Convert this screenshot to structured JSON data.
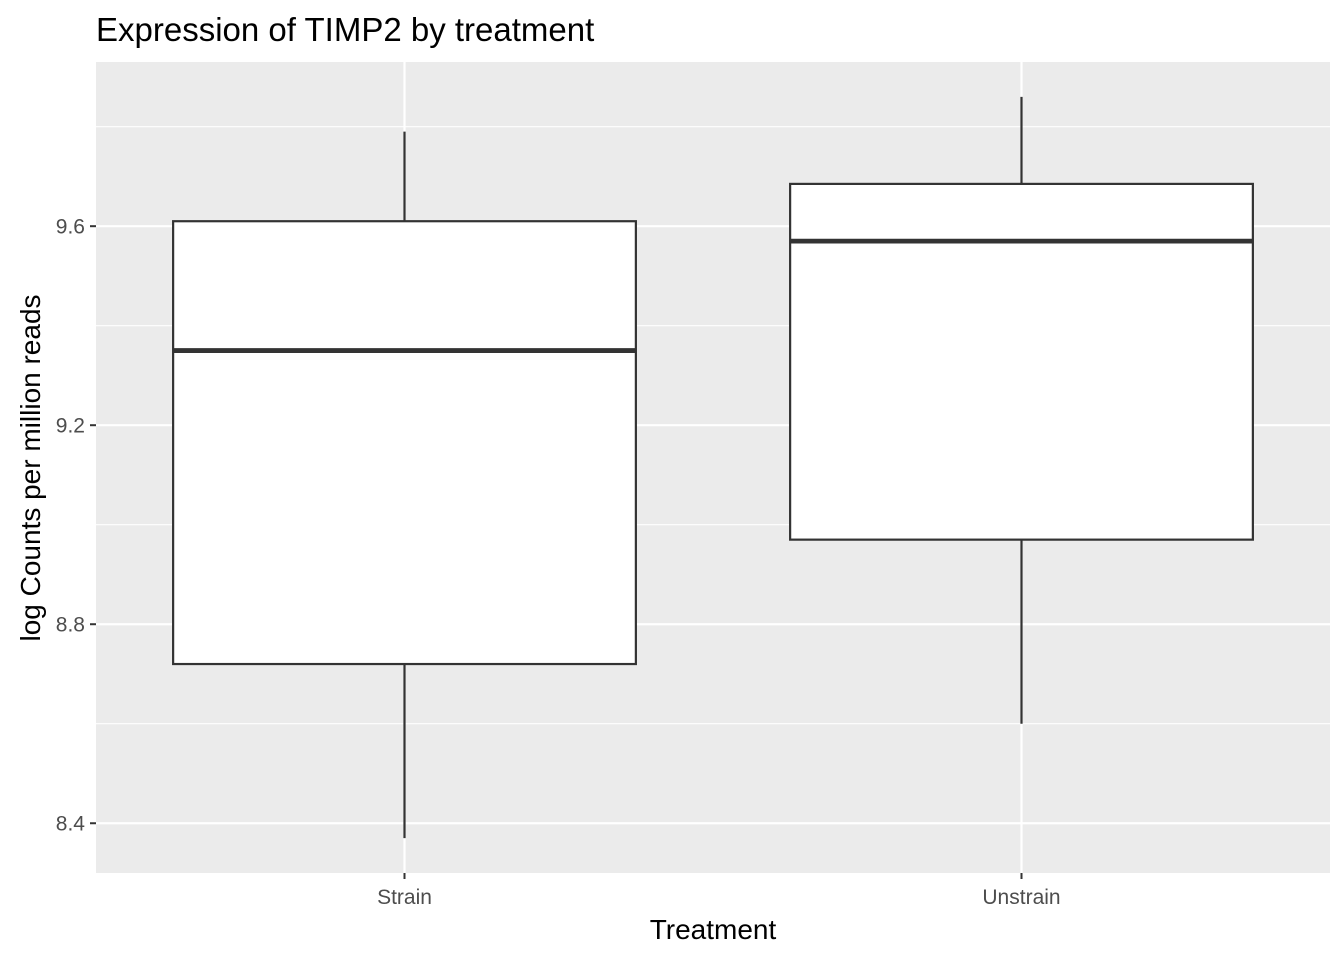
{
  "chart_data": {
    "type": "box",
    "title": "Expression of TIMP2 by treatment",
    "xlabel": "Treatment",
    "ylabel": "log Counts per million reads",
    "categories": [
      "Strain",
      "Unstrain"
    ],
    "boxes": [
      {
        "category": "Strain",
        "whisker_low": 8.37,
        "q1": 8.72,
        "median": 9.35,
        "q3": 9.61,
        "whisker_high": 9.79
      },
      {
        "category": "Unstrain",
        "whisker_low": 8.6,
        "q1": 8.97,
        "median": 9.57,
        "q3": 9.685,
        "whisker_high": 9.86
      }
    ],
    "ylim": [
      8.3,
      9.93
    ],
    "yticks": [
      8.4,
      8.8,
      9.2,
      9.6
    ],
    "ytick_labels": [
      "8.4",
      "8.8",
      "9.2",
      "9.6"
    ],
    "grid": true,
    "colors": {
      "panel_background": "#ebebeb",
      "grid": "#ffffff",
      "box_fill": "#ffffff",
      "box_line": "#333333",
      "tick_label": "#4d4d4d",
      "tick_mark": "#333333"
    }
  }
}
